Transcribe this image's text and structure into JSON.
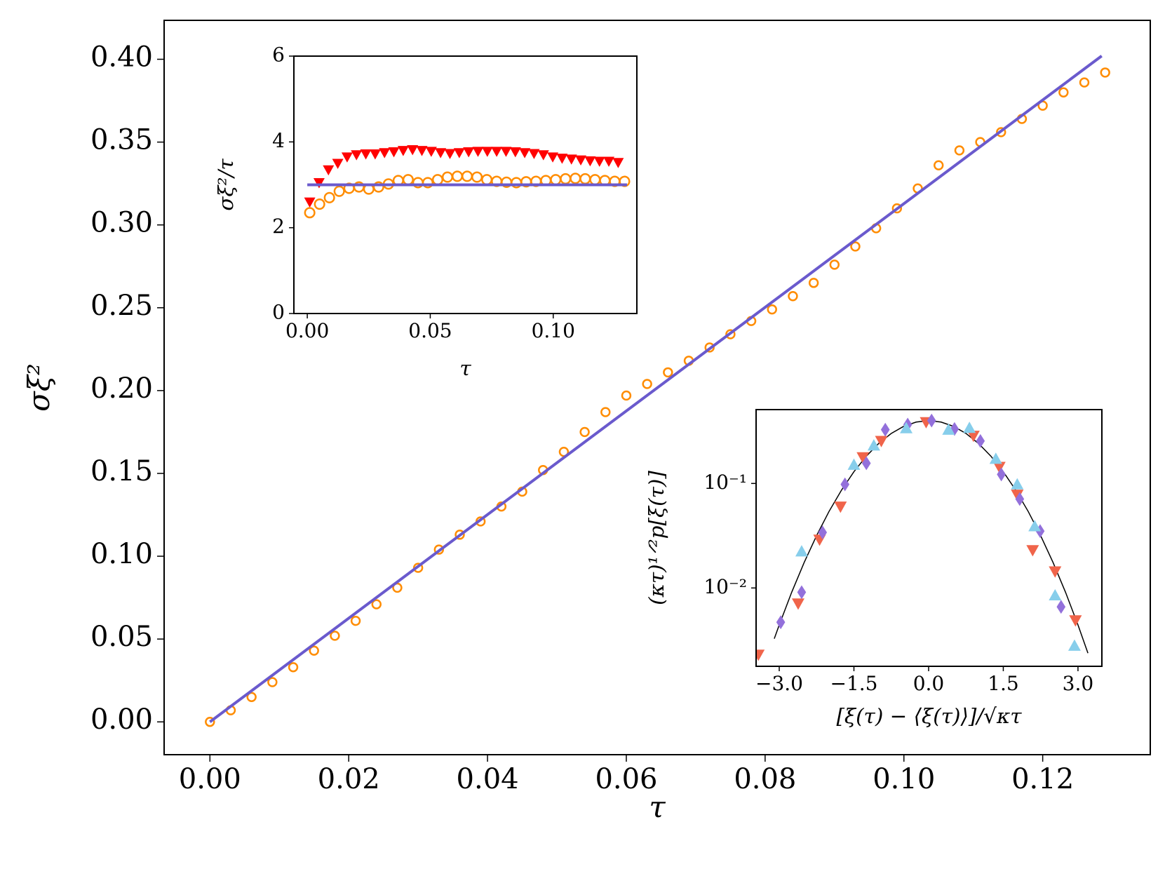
{
  "chart_data": [
    {
      "type": "scatter",
      "xlabel": "τ",
      "ylabel": "σξ²",
      "xlim": [
        -0.0066,
        0.1355
      ],
      "ylim": [
        -0.0198,
        0.4235
      ],
      "xticks": [
        {
          "value": 0,
          "label": "0.00"
        },
        {
          "value": 0.02,
          "label": "0.02"
        },
        {
          "value": 0.04,
          "label": "0.04"
        },
        {
          "value": 0.06,
          "label": "0.06"
        },
        {
          "value": 0.08,
          "label": "0.08"
        },
        {
          "value": 0.1,
          "label": "0.10"
        },
        {
          "value": 0.12,
          "label": "0.12"
        }
      ],
      "yticks": [
        {
          "value": 0,
          "label": "0.00"
        },
        {
          "value": 0.05,
          "label": "0.05"
        },
        {
          "value": 0.1,
          "label": "0.10"
        },
        {
          "value": 0.15,
          "label": "0.15"
        },
        {
          "value": 0.2,
          "label": "0.20"
        },
        {
          "value": 0.25,
          "label": "0.25"
        },
        {
          "value": 0.3,
          "label": "0.30"
        },
        {
          "value": 0.35,
          "label": "0.35"
        },
        {
          "value": 0.4,
          "label": "0.40"
        }
      ],
      "series": [
        {
          "marker": "circle",
          "color": "#ff8c00",
          "x": [
            0,
            0.003,
            0.006,
            0.009,
            0.012,
            0.015,
            0.018,
            0.021,
            0.024,
            0.027,
            0.03,
            0.033,
            0.036,
            0.039,
            0.042,
            0.045,
            0.048,
            0.051,
            0.054,
            0.057,
            0.06,
            0.063,
            0.066,
            0.069,
            0.072,
            0.075,
            0.078,
            0.081,
            0.084,
            0.087,
            0.09,
            0.093,
            0.096,
            0.099,
            0.102,
            0.105,
            0.108,
            0.111,
            0.114,
            0.117,
            0.12,
            0.123,
            0.126,
            0.129
          ],
          "values": [
            0,
            0.007,
            0.015,
            0.024,
            0.033,
            0.043,
            0.052,
            0.061,
            0.071,
            0.081,
            0.093,
            0.104,
            0.113,
            0.121,
            0.13,
            0.139,
            0.152,
            0.163,
            0.175,
            0.187,
            0.197,
            0.204,
            0.211,
            0.218,
            0.226,
            0.234,
            0.242,
            0.249,
            0.257,
            0.265,
            0.276,
            0.287,
            0.298,
            0.31,
            0.322,
            0.336,
            0.345,
            0.35,
            0.356,
            0.364,
            0.372,
            0.38,
            0.386,
            0.392
          ]
        },
        {
          "marker": "line",
          "color": "#6a5acd",
          "x": [
            0,
            0.1285
          ],
          "values": [
            0,
            0.402
          ]
        }
      ]
    },
    {
      "type": "scatter",
      "xlabel": "τ",
      "ylabel": "σξ²/τ",
      "xlim": [
        -0.00545,
        0.134
      ],
      "ylim": [
        0,
        6
      ],
      "xticks": [
        {
          "value": 0,
          "label": "0.00"
        },
        {
          "value": 0.05,
          "label": "0.05"
        },
        {
          "value": 0.1,
          "label": "0.10"
        }
      ],
      "yticks": [
        0,
        2,
        4,
        6
      ],
      "series": [
        {
          "marker": "triangle_down",
          "color": "#ff0000",
          "x": [
            0.001,
            0.0048,
            0.0086,
            0.0124,
            0.0162,
            0.02,
            0.0238,
            0.0276,
            0.0314,
            0.0352,
            0.039,
            0.0428,
            0.0466,
            0.0504,
            0.0542,
            0.058,
            0.0618,
            0.0656,
            0.0694,
            0.0732,
            0.077,
            0.0808,
            0.0846,
            0.0884,
            0.0922,
            0.096,
            0.0998,
            0.1036,
            0.1074,
            0.1112,
            0.115,
            0.1188,
            0.1226,
            0.1264
          ],
          "values": [
            2.6,
            3.05,
            3.35,
            3.5,
            3.65,
            3.7,
            3.72,
            3.72,
            3.75,
            3.77,
            3.8,
            3.82,
            3.8,
            3.78,
            3.75,
            3.73,
            3.75,
            3.77,
            3.78,
            3.78,
            3.78,
            3.78,
            3.77,
            3.75,
            3.73,
            3.7,
            3.65,
            3.62,
            3.6,
            3.58,
            3.56,
            3.55,
            3.55,
            3.52
          ]
        },
        {
          "marker": "circle",
          "color": "#ff8c00",
          "x": [
            0.001,
            0.005,
            0.009,
            0.013,
            0.017,
            0.021,
            0.025,
            0.029,
            0.033,
            0.037,
            0.041,
            0.045,
            0.049,
            0.053,
            0.057,
            0.061,
            0.065,
            0.069,
            0.073,
            0.077,
            0.081,
            0.085,
            0.089,
            0.093,
            0.097,
            0.101,
            0.105,
            0.109,
            0.113,
            0.117,
            0.121,
            0.125,
            0.129
          ],
          "values": [
            2.35,
            2.55,
            2.7,
            2.85,
            2.92,
            2.95,
            2.9,
            2.95,
            3.02,
            3.1,
            3.12,
            3.05,
            3.05,
            3.12,
            3.18,
            3.2,
            3.2,
            3.18,
            3.12,
            3.08,
            3.06,
            3.05,
            3.07,
            3.08,
            3.1,
            3.12,
            3.14,
            3.15,
            3.14,
            3.12,
            3.1,
            3.08,
            3.08
          ]
        },
        {
          "marker": "line",
          "color": "#6a5acd",
          "x": [
            0,
            0.13
          ],
          "values": [
            3,
            3
          ]
        }
      ]
    },
    {
      "type": "scatter",
      "log_y": true,
      "xlabel": "[ξ(τ) − ⟨ξ(τ)⟩]/√κτ",
      "ylabel": "(κτ)¹ᐟ²p[ξ(τ)]",
      "xlim": [
        -3.465,
        3.48
      ],
      "ylim": [
        0.00178,
        0.509
      ],
      "xticks": [
        {
          "value": -3,
          "label": "−3.0"
        },
        {
          "value": -1.5,
          "label": "−1.5"
        },
        {
          "value": 0,
          "label": "0.0"
        },
        {
          "value": 1.5,
          "label": "1.5"
        },
        {
          "value": 3,
          "label": "3.0"
        }
      ],
      "yticks": [
        {
          "value": 0.01,
          "label": "10⁻²"
        },
        {
          "value": 0.1,
          "label": "10⁻¹"
        }
      ],
      "series": [
        {
          "marker": "curve",
          "color": "#000000",
          "x": [
            -3.1,
            -3,
            -2.75,
            -2.5,
            -2.25,
            -2,
            -1.75,
            -1.5,
            -1.25,
            -1,
            -0.75,
            -0.5,
            -0.25,
            0,
            0.25,
            0.5,
            0.75,
            1,
            1.25,
            1.5,
            1.75,
            2,
            2.25,
            2.5,
            2.75,
            3,
            3.2
          ],
          "values": [
            0.00327,
            0.00443,
            0.0091,
            0.0175,
            0.0317,
            0.054,
            0.0863,
            0.1295,
            0.1826,
            0.242,
            0.3011,
            0.352,
            0.3867,
            0.399,
            0.3867,
            0.352,
            0.3011,
            0.242,
            0.1826,
            0.1295,
            0.0863,
            0.054,
            0.0317,
            0.0175,
            0.0091,
            0.00443,
            0.00238
          ]
        },
        {
          "marker": "triangle_down",
          "color": "#f0644a",
          "x": [
            -3.42,
            -2.62,
            -2.19,
            -1.77,
            -1.32,
            -0.95,
            -0.05,
            0.9,
            1.42,
            1.78,
            2.09,
            2.54,
            2.95
          ],
          "values": [
            0.0023,
            0.0071,
            0.029,
            0.06,
            0.178,
            0.255,
            0.386,
            0.286,
            0.144,
            0.078,
            0.023,
            0.0144,
            0.0049
          ]
        },
        {
          "marker": "diamond",
          "color": "#9370db",
          "x": [
            -2.97,
            -2.55,
            -2.13,
            -1.68,
            -1.25,
            -0.87,
            -0.42,
            0.06,
            0.52,
            1.04,
            1.46,
            1.83,
            2.24,
            2.66
          ],
          "values": [
            0.0047,
            0.0091,
            0.034,
            0.098,
            0.156,
            0.327,
            0.366,
            0.4,
            0.332,
            0.255,
            0.122,
            0.071,
            0.035,
            0.0066
          ]
        },
        {
          "marker": "triangle_up",
          "color": "#87ceeb",
          "x": [
            -2.55,
            -1.5,
            -1.1,
            -0.45,
            0.4,
            0.82,
            1.35,
            1.78,
            2.13,
            2.54,
            2.93
          ],
          "values": [
            0.0224,
            0.151,
            0.231,
            0.338,
            0.327,
            0.34,
            0.172,
            0.098,
            0.039,
            0.0085,
            0.0028
          ]
        }
      ]
    }
  ]
}
